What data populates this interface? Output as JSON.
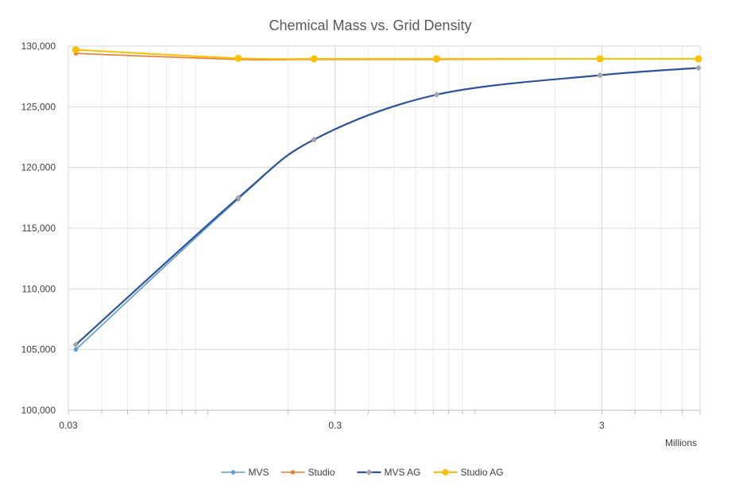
{
  "chart_data": {
    "type": "line",
    "title": "Chemical Mass vs. Grid Density",
    "xlabel": "",
    "ylabel": "",
    "x_unit_label": "Millions",
    "x_scale": "log",
    "xlim": [
      0.03,
      7
    ],
    "ylim": [
      100000,
      130000
    ],
    "x_tick_values": [
      0.03,
      0.3,
      3
    ],
    "x_tick_labels": [
      "0.03",
      "0.3",
      "3"
    ],
    "y_tick_values": [
      100000,
      105000,
      110000,
      115000,
      120000,
      125000,
      130000
    ],
    "y_tick_labels": [
      "100,000",
      "105,000",
      "110,000",
      "115,000",
      "120,000",
      "125,000",
      "130,000"
    ],
    "grid": true,
    "legend_position": "bottom",
    "series": [
      {
        "name": "MVS",
        "color": "#5B9BD5",
        "marker": "circle",
        "x": [
          0.032,
          0.13,
          0.25,
          0.72,
          2.95,
          6.9
        ],
        "y": [
          105000,
          117400,
          122300,
          126000,
          127600,
          128200
        ]
      },
      {
        "name": "Studio",
        "color": "#ED7D31",
        "marker": "circle",
        "x": [
          0.032,
          0.13,
          0.25,
          0.72,
          2.95,
          6.9
        ],
        "y": [
          129400,
          128900,
          128900,
          128900,
          128950,
          128950
        ]
      },
      {
        "name": "MVS AG",
        "color": "#2F5597",
        "marker": "diamond",
        "x": [
          0.032,
          0.13,
          0.25,
          0.72,
          2.95,
          6.9
        ],
        "y": [
          105400,
          117500,
          122300,
          126000,
          127600,
          128200
        ]
      },
      {
        "name": "Studio AG",
        "color": "#FFC000",
        "marker": "circle",
        "x": [
          0.032,
          0.13,
          0.25,
          0.72,
          2.95,
          6.9
        ],
        "y": [
          129700,
          129000,
          128950,
          128950,
          128950,
          128950
        ]
      }
    ]
  }
}
